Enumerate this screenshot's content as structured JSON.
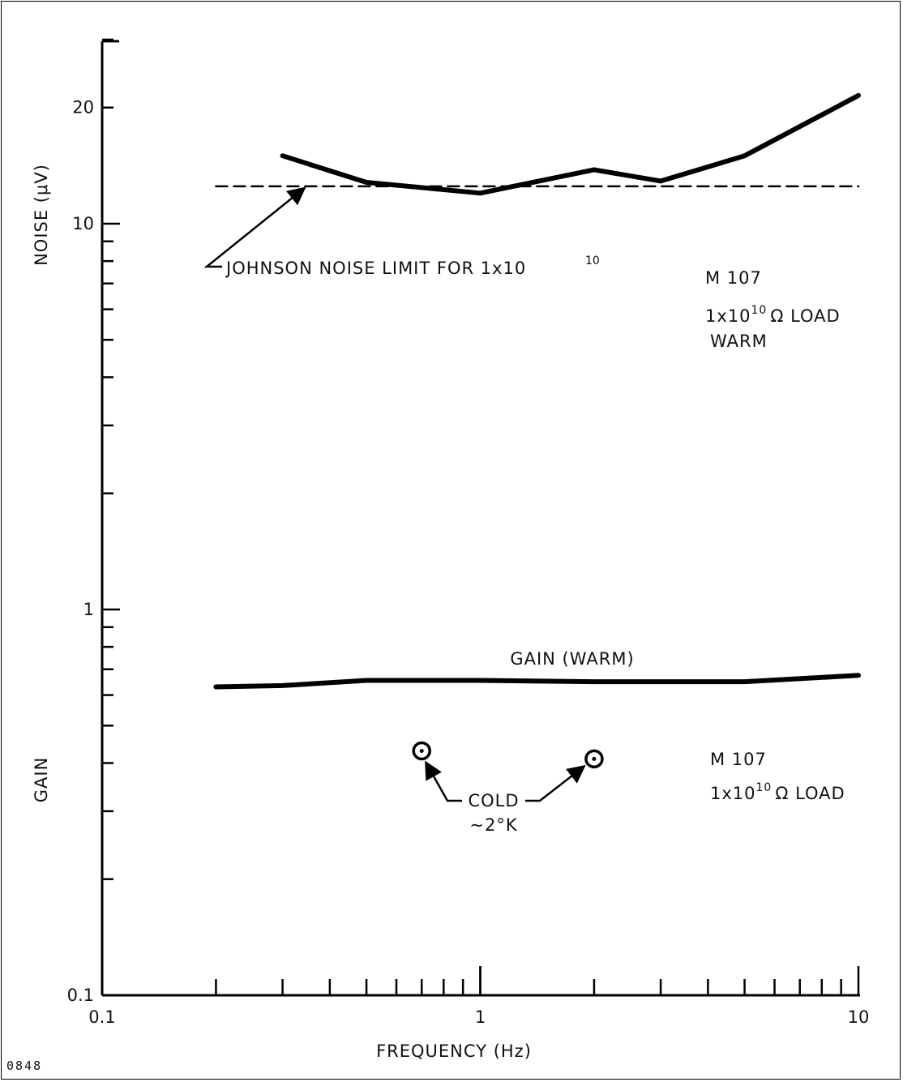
{
  "figure_number": "0848",
  "chart_data": {
    "type": "line",
    "x_scale": "log",
    "y_scale": "log",
    "xlim": [
      0.1,
      10
    ],
    "ylim": [
      0.1,
      30
    ],
    "xlabel": "FREQUENCY (Hz)",
    "ylabel_top": "NOISE (μV)",
    "ylabel_bottom": "GAIN",
    "x_tick_labels": [
      {
        "value": 0.1,
        "label": "0.1"
      },
      {
        "value": 1,
        "label": "1"
      },
      {
        "value": 10,
        "label": "10"
      }
    ],
    "y_tick_labels": [
      {
        "value": 20,
        "label": "20"
      },
      {
        "value": 10,
        "label": "10"
      },
      {
        "value": 1,
        "label": "1"
      },
      {
        "value": 0.1,
        "label": "0.1"
      }
    ],
    "series": [
      {
        "key": "noise",
        "style": "solid",
        "x": [
          0.3,
          0.5,
          1,
          2,
          3,
          5,
          10
        ],
        "y": [
          15.0,
          12.8,
          12.0,
          13.8,
          12.9,
          15.0,
          21.5
        ]
      },
      {
        "key": "johnson",
        "style": "dashed",
        "x": [
          0.2,
          10
        ],
        "y": [
          12.5,
          12.5
        ]
      },
      {
        "key": "gain",
        "name": "GAIN (WARM)",
        "style": "solid",
        "x": [
          0.2,
          0.3,
          0.5,
          1,
          2,
          5,
          10
        ],
        "y": [
          0.63,
          0.635,
          0.655,
          0.655,
          0.65,
          0.65,
          0.675
        ]
      },
      {
        "key": "cold",
        "style": "points",
        "x": [
          0.7,
          2
        ],
        "y": [
          0.43,
          0.41
        ]
      }
    ],
    "annotations": {
      "johnson_main": "JOHNSON NOISE LIMIT FOR 1x10",
      "johnson_exp": "10",
      "noise_line1": "M 107",
      "noise_line2_pre": "1x10",
      "noise_line2_exp": "10",
      "noise_line2_post": "Ω LOAD",
      "noise_line3": "WARM",
      "gain_line1": "M 107",
      "gain_line2_pre": "1x10",
      "gain_line2_exp": "10",
      "gain_line2_post": "Ω LOAD",
      "cold_line1": "COLD",
      "cold_line2": "~2°K"
    }
  }
}
